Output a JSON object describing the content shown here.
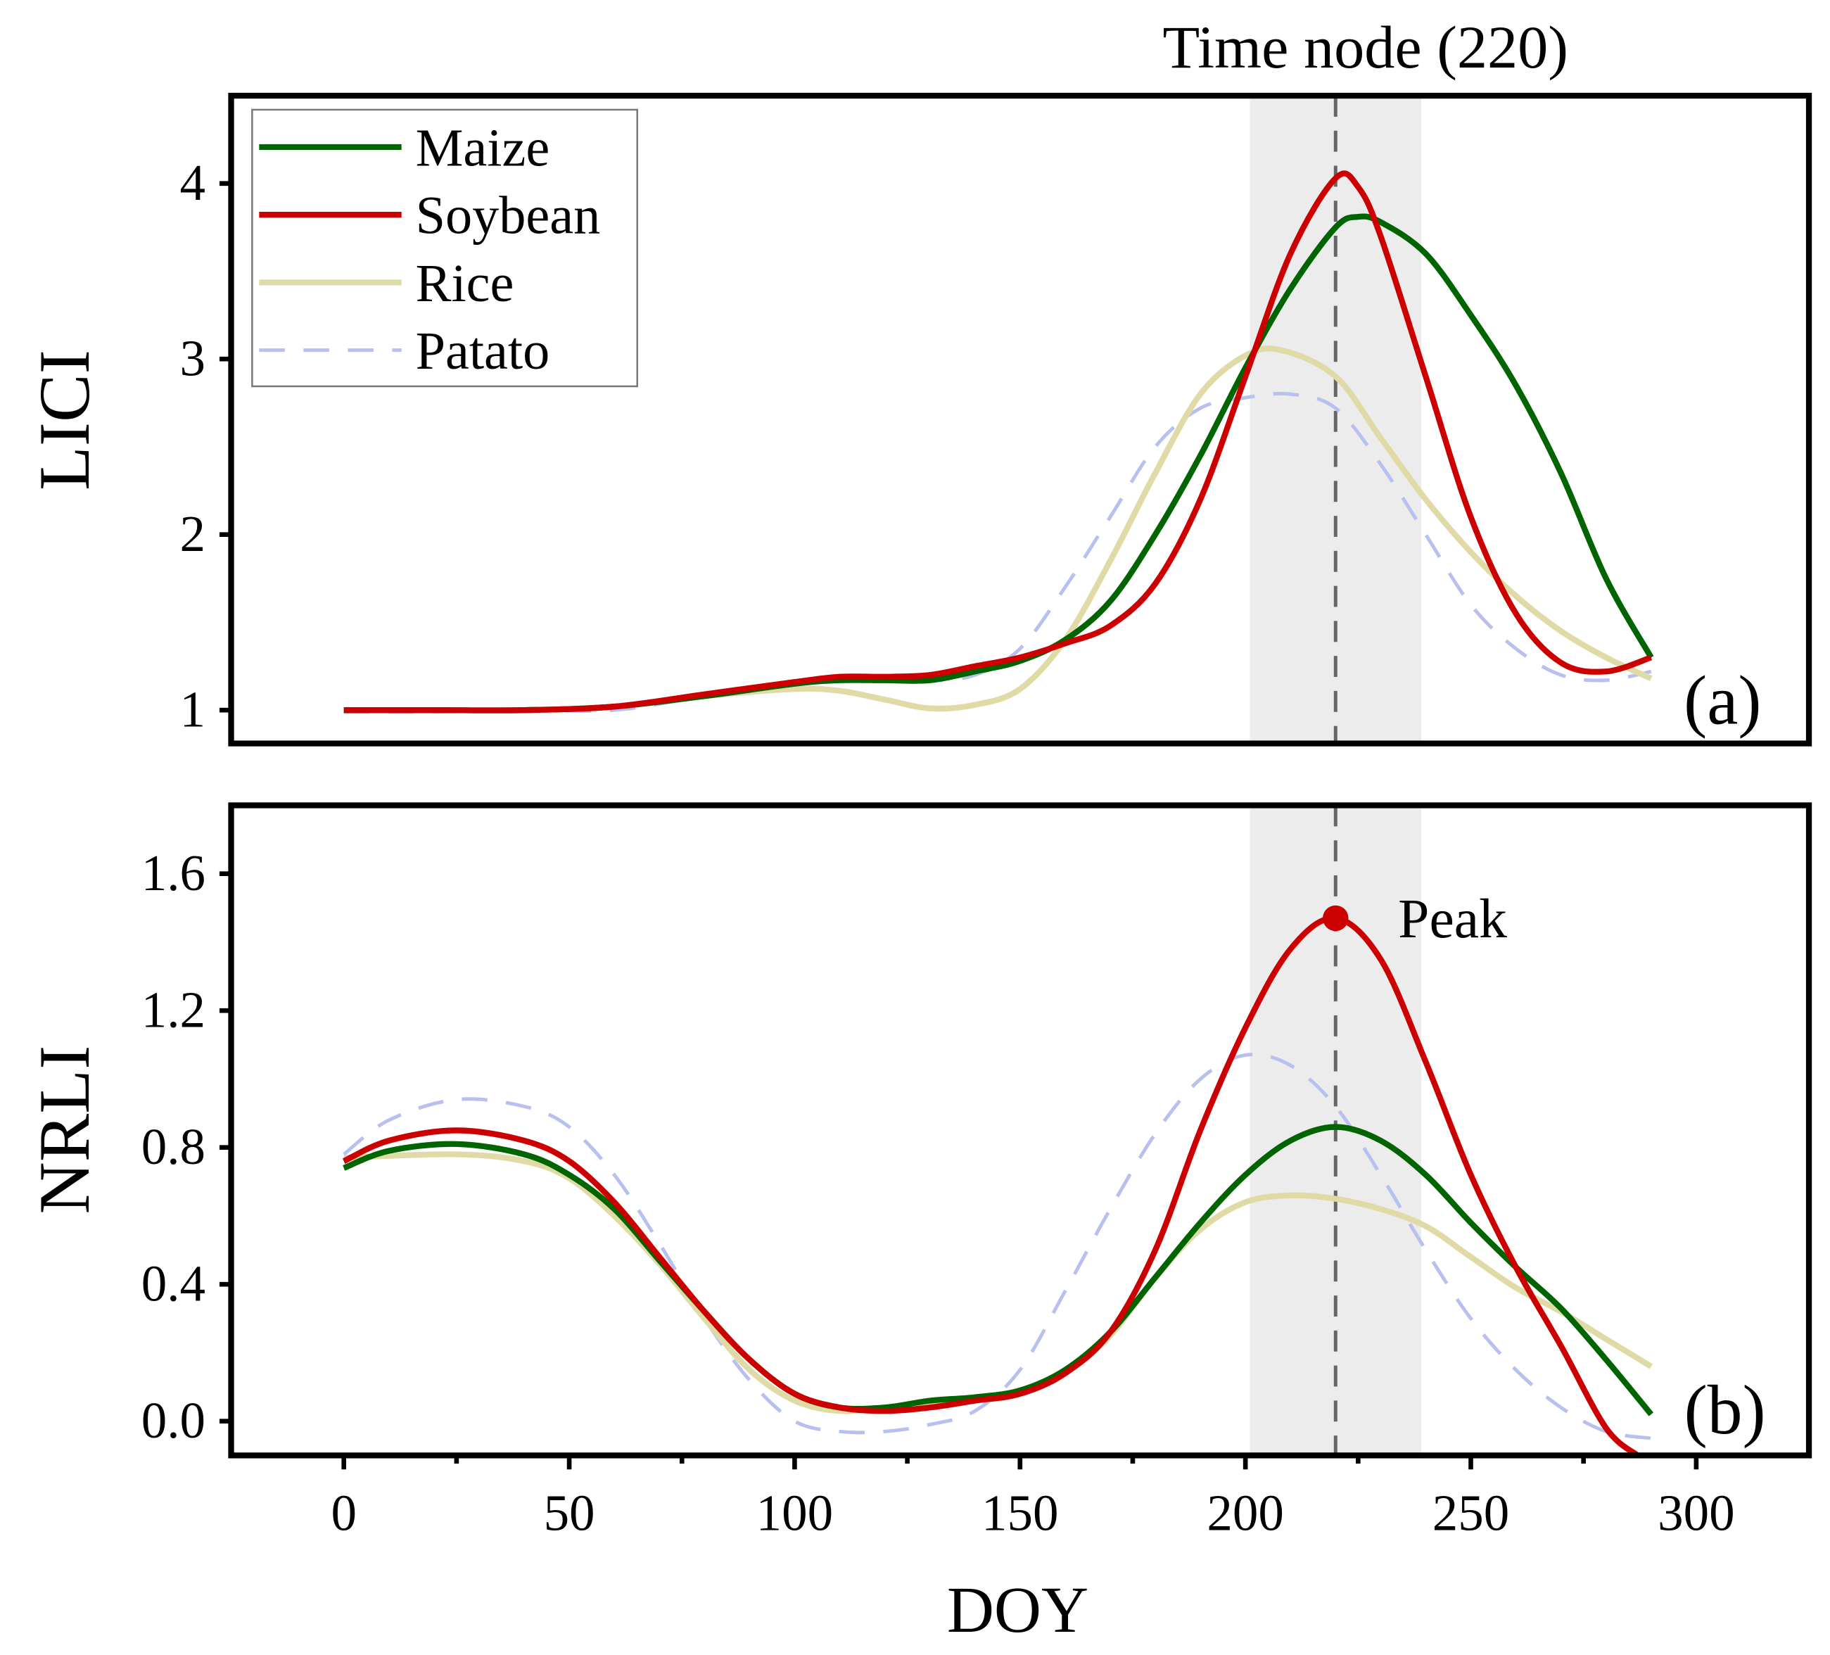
{
  "chart_data": [
    {
      "type": "line",
      "panel_label": "(a)",
      "ylabel": "LICI",
      "ylim": [
        0.81,
        4.5
      ],
      "yticks": [
        1,
        2,
        3,
        4
      ],
      "xlim": [
        -25,
        325
      ],
      "annotation_top": "Time node (220)",
      "time_node": 220,
      "shaded_band": [
        201,
        239
      ],
      "legend": {
        "placement": "top-left",
        "entries": [
          "Maize",
          "Soybean",
          "Rice",
          "Patato"
        ]
      },
      "series": [
        {
          "name": "Maize",
          "color": "#006400",
          "dashed": false,
          "x": [
            0,
            20,
            40,
            60,
            80,
            100,
            110,
            120,
            130,
            140,
            150,
            160,
            170,
            180,
            190,
            200,
            210,
            220,
            225,
            230,
            240,
            250,
            260,
            270,
            280,
            290
          ],
          "y": [
            1.0,
            1.0,
            1.0,
            1.02,
            1.08,
            1.15,
            1.17,
            1.17,
            1.17,
            1.22,
            1.28,
            1.4,
            1.62,
            2.0,
            2.45,
            2.95,
            3.4,
            3.75,
            3.81,
            3.78,
            3.6,
            3.25,
            2.85,
            2.35,
            1.75,
            1.3
          ]
        },
        {
          "name": "Soybean",
          "color": "#cc0000",
          "dashed": false,
          "x": [
            0,
            20,
            40,
            60,
            80,
            100,
            110,
            120,
            130,
            140,
            150,
            160,
            170,
            180,
            190,
            200,
            210,
            220,
            225,
            230,
            240,
            250,
            260,
            270,
            280,
            290
          ],
          "y": [
            1.0,
            1.0,
            1.0,
            1.02,
            1.09,
            1.16,
            1.19,
            1.19,
            1.2,
            1.25,
            1.3,
            1.38,
            1.48,
            1.72,
            2.2,
            2.9,
            3.6,
            4.03,
            3.98,
            3.7,
            2.9,
            2.1,
            1.55,
            1.27,
            1.22,
            1.3
          ]
        },
        {
          "name": "Rice",
          "color": "#e0dba6",
          "dashed": false,
          "x": [
            0,
            20,
            40,
            60,
            80,
            100,
            110,
            120,
            130,
            140,
            150,
            160,
            170,
            180,
            190,
            200,
            208,
            220,
            230,
            240,
            250,
            260,
            270,
            280,
            290
          ],
          "y": [
            1.0,
            1.0,
            1.0,
            1.02,
            1.08,
            1.12,
            1.11,
            1.06,
            1.01,
            1.03,
            1.12,
            1.4,
            1.85,
            2.35,
            2.8,
            3.02,
            3.05,
            2.9,
            2.55,
            2.2,
            1.9,
            1.65,
            1.45,
            1.3,
            1.18
          ]
        },
        {
          "name": "Patato",
          "color": "#b8c0f0",
          "dashed": true,
          "x": [
            0,
            20,
            40,
            60,
            80,
            100,
            120,
            130,
            140,
            150,
            160,
            170,
            180,
            190,
            200,
            210,
            220,
            230,
            240,
            250,
            260,
            270,
            280,
            290
          ],
          "y": [
            0.99,
            0.99,
            1.0,
            1.0,
            1.08,
            1.16,
            1.18,
            1.17,
            1.2,
            1.35,
            1.7,
            2.1,
            2.5,
            2.72,
            2.78,
            2.8,
            2.72,
            2.4,
            2.0,
            1.6,
            1.35,
            1.2,
            1.17,
            1.22
          ]
        }
      ]
    },
    {
      "type": "line",
      "panel_label": "(b)",
      "ylabel": "NRLI",
      "xlabel": "DOY",
      "ylim": [
        -0.1,
        1.8
      ],
      "yticks": [
        "0.0",
        "0.4",
        "0.8",
        "1.2",
        "1.6"
      ],
      "xlim": [
        -25,
        325
      ],
      "xticks": [
        "0",
        "50",
        "100",
        "150",
        "200",
        "250",
        "300"
      ],
      "time_node": 220,
      "shaded_band": [
        201,
        239
      ],
      "peak": {
        "label": "Peak",
        "x": 220,
        "y": 1.47,
        "color": "#cc0000"
      },
      "series": [
        {
          "name": "Maize",
          "color": "#006400",
          "dashed": false,
          "x": [
            0,
            10,
            25,
            40,
            50,
            60,
            70,
            80,
            90,
            100,
            110,
            120,
            130,
            140,
            150,
            160,
            170,
            180,
            190,
            200,
            210,
            220,
            230,
            240,
            250,
            260,
            270,
            280,
            290
          ],
          "y": [
            0.74,
            0.79,
            0.81,
            0.78,
            0.72,
            0.62,
            0.47,
            0.32,
            0.18,
            0.08,
            0.04,
            0.04,
            0.06,
            0.07,
            0.09,
            0.15,
            0.26,
            0.42,
            0.58,
            0.72,
            0.82,
            0.86,
            0.82,
            0.72,
            0.58,
            0.45,
            0.33,
            0.18,
            0.02
          ]
        },
        {
          "name": "Soybean",
          "color": "#cc0000",
          "dashed": false,
          "x": [
            0,
            10,
            25,
            40,
            50,
            60,
            70,
            80,
            90,
            100,
            110,
            120,
            130,
            140,
            150,
            160,
            170,
            180,
            190,
            200,
            210,
            220,
            230,
            240,
            250,
            260,
            270,
            280,
            287
          ],
          "y": [
            0.76,
            0.82,
            0.85,
            0.82,
            0.76,
            0.64,
            0.48,
            0.32,
            0.18,
            0.08,
            0.04,
            0.03,
            0.04,
            0.06,
            0.08,
            0.14,
            0.26,
            0.5,
            0.85,
            1.15,
            1.38,
            1.47,
            1.35,
            1.05,
            0.72,
            0.45,
            0.22,
            -0.02,
            -0.1
          ]
        },
        {
          "name": "Rice",
          "color": "#e0dba6",
          "dashed": false,
          "x": [
            0,
            25,
            40,
            50,
            60,
            70,
            80,
            90,
            100,
            110,
            120,
            130,
            140,
            150,
            160,
            170,
            180,
            190,
            200,
            210,
            220,
            230,
            240,
            250,
            260,
            270,
            280,
            290
          ],
          "y": [
            0.77,
            0.78,
            0.76,
            0.71,
            0.6,
            0.46,
            0.3,
            0.15,
            0.06,
            0.03,
            0.04,
            0.05,
            0.06,
            0.08,
            0.14,
            0.25,
            0.42,
            0.56,
            0.64,
            0.66,
            0.65,
            0.62,
            0.57,
            0.48,
            0.39,
            0.32,
            0.24,
            0.16
          ]
        },
        {
          "name": "Patato",
          "color": "#b8c0f0",
          "dashed": true,
          "x": [
            0,
            10,
            25,
            40,
            50,
            60,
            70,
            80,
            90,
            100,
            110,
            120,
            130,
            140,
            150,
            160,
            170,
            180,
            190,
            200,
            210,
            220,
            230,
            240,
            250,
            260,
            270,
            280,
            290
          ],
          "y": [
            0.78,
            0.88,
            0.94,
            0.92,
            0.86,
            0.72,
            0.52,
            0.3,
            0.12,
            0.0,
            -0.03,
            -0.03,
            -0.01,
            0.03,
            0.15,
            0.38,
            0.62,
            0.84,
            1.0,
            1.07,
            1.04,
            0.92,
            0.72,
            0.5,
            0.3,
            0.15,
            0.04,
            -0.03,
            -0.05
          ]
        }
      ]
    }
  ]
}
